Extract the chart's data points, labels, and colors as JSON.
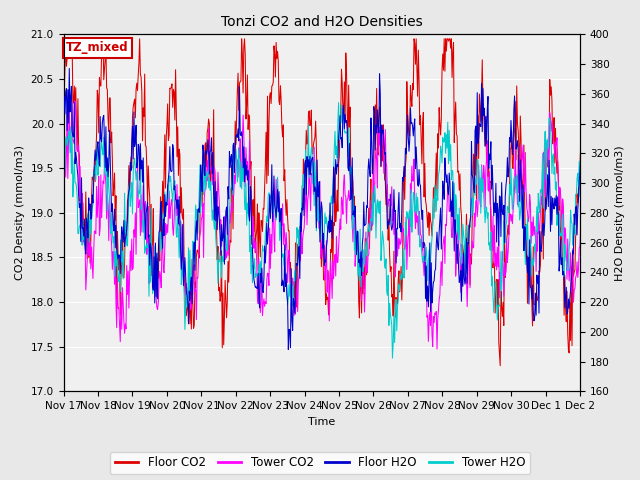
{
  "title": "Tonzi CO2 and H2O Densities",
  "xlabel": "Time",
  "ylabel_left": "CO2 Density (mmol/m3)",
  "ylabel_right": "H2O Density (mmol/m3)",
  "ylim_left": [
    17.0,
    21.0
  ],
  "ylim_right": [
    160,
    400
  ],
  "annotation_text": "TZ_mixed",
  "annotation_color": "#cc0000",
  "annotation_border": "#cc0000",
  "xtick_labels": [
    "Nov 17",
    "Nov 18",
    "Nov 19",
    "Nov 20",
    "Nov 21",
    "Nov 22",
    "Nov 23",
    "Nov 24",
    "Nov 25",
    "Nov 26",
    "Nov 27",
    "Nov 28",
    "Nov 29",
    "Nov 30",
    "Dec 1",
    "Dec 2"
  ],
  "legend_labels": [
    "Floor CO2",
    "Tower CO2",
    "Floor H2O",
    "Tower H2O"
  ],
  "legend_colors": [
    "#dd0000",
    "#ff00ff",
    "#0000cc",
    "#00cccc"
  ],
  "floor_co2_color": "#dd0000",
  "tower_co2_color": "#ff00ff",
  "floor_h2o_color": "#0000cc",
  "tower_h2o_color": "#00cccc",
  "bg_color": "#e8e8e8",
  "plot_bg_color": "#f0f0f0",
  "n_days": 16,
  "pts_per_day": 48,
  "seed": 42
}
